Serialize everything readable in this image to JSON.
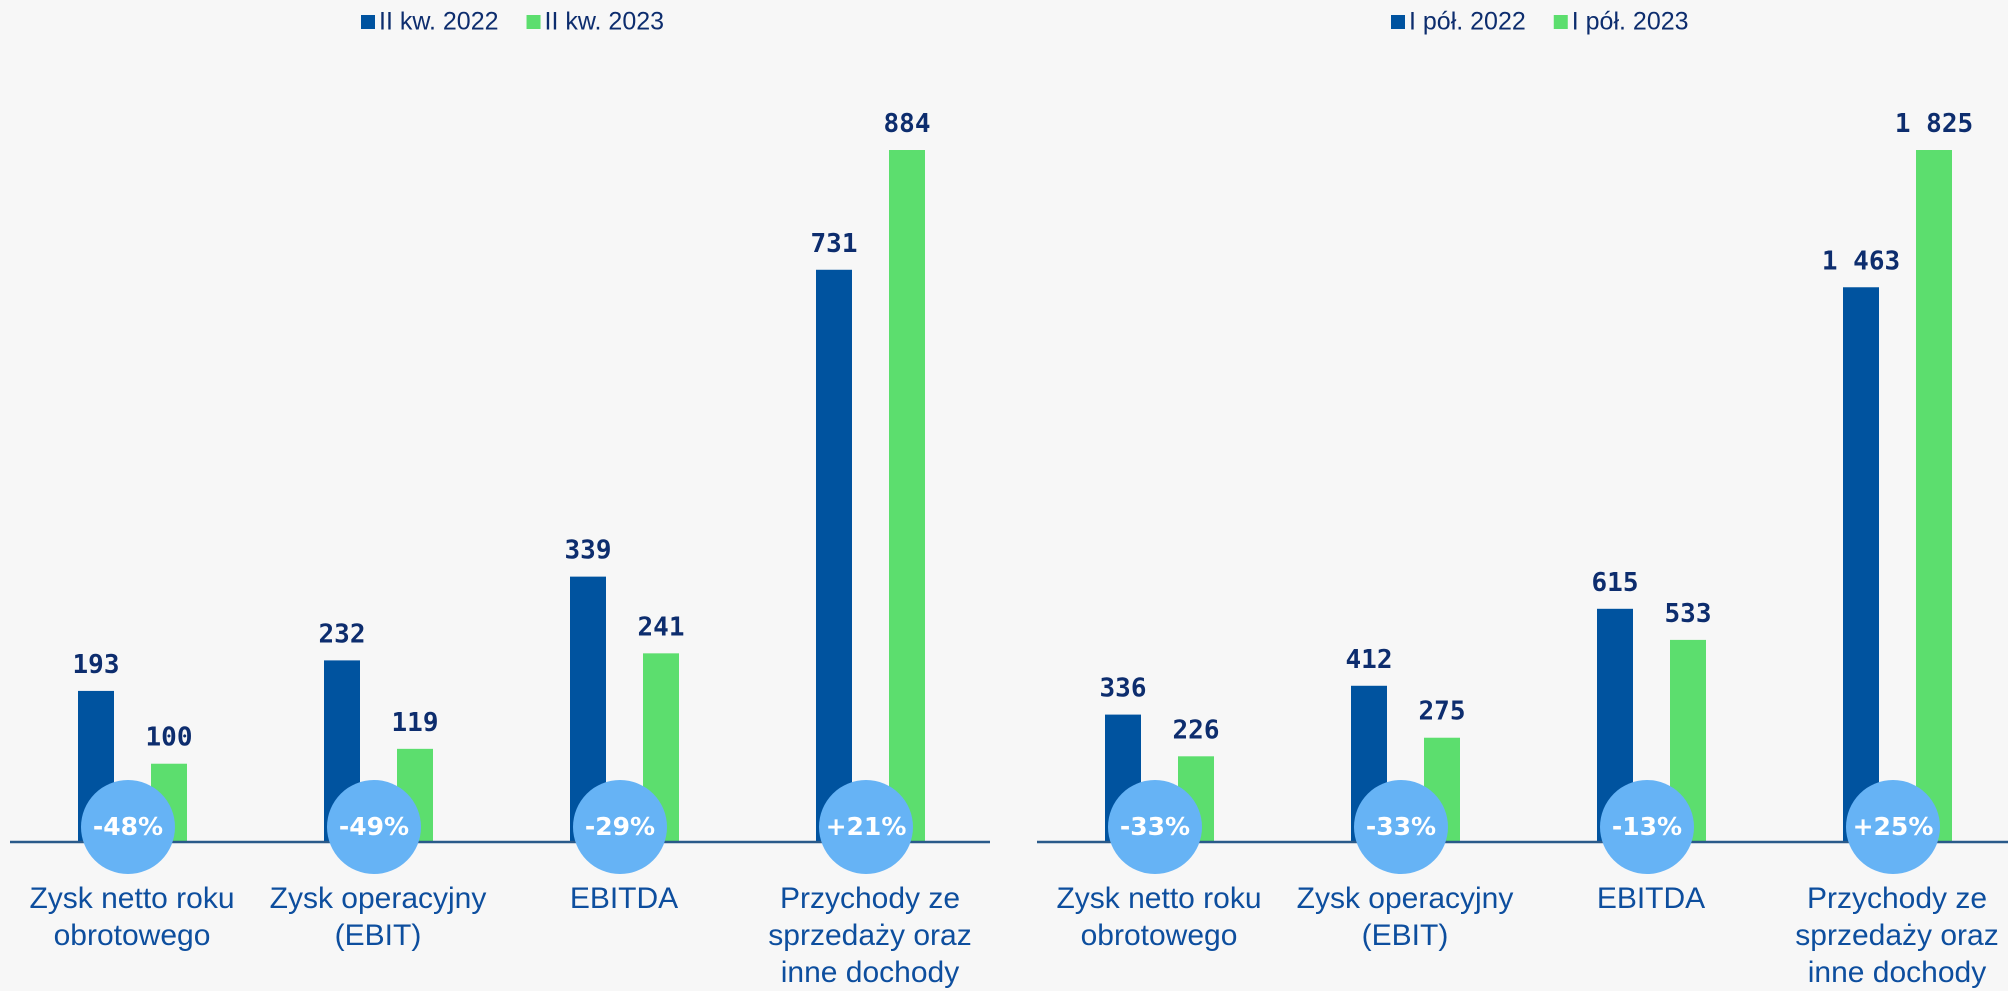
{
  "chart_data": [
    {
      "type": "bar",
      "categories": [
        "Zysk netto roku obrotowego",
        "Zysk operacyjny (EBIT)",
        "EBITDA",
        "Przychody ze sprzedaży oraz inne dochody"
      ],
      "series": [
        {
          "name": "II kw. 2022",
          "color": "#00539f",
          "values": [
            193,
            232,
            339,
            731
          ]
        },
        {
          "name": "II kw. 2023",
          "color": "#5cde6e",
          "values": [
            100,
            119,
            241,
            884
          ]
        }
      ],
      "change_labels": [
        "-48%",
        "-49%",
        "-29%",
        "+21%"
      ],
      "legend": "top"
    },
    {
      "type": "bar",
      "categories": [
        "Zysk netto roku obrotowego",
        "Zysk operacyjny (EBIT)",
        "EBITDA",
        "Przychody ze sprzedaży oraz inne dochody"
      ],
      "series": [
        {
          "name": "I pół. 2022",
          "color": "#00539f",
          "values": [
            336,
            412,
            615,
            1463
          ],
          "value_labels": [
            "336",
            "412",
            "615",
            "1 463"
          ]
        },
        {
          "name": "I pół. 2023",
          "color": "#5cde6e",
          "values": [
            226,
            275,
            533,
            1825
          ],
          "value_labels": [
            "226",
            "275",
            "533",
            "1 825"
          ]
        }
      ],
      "change_labels": [
        "-33%",
        "-33%",
        "-13%",
        "+25%"
      ],
      "legend": "top"
    }
  ]
}
